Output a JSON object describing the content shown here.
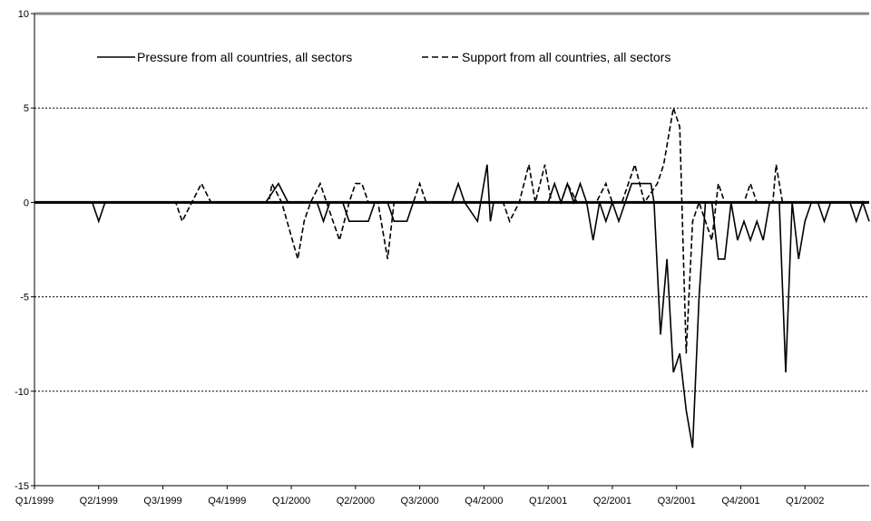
{
  "chart_data": {
    "type": "line",
    "title": "",
    "xlabel": "",
    "ylabel": "",
    "ylim": [
      -15,
      10
    ],
    "yticks": [
      -15,
      -10,
      -5,
      0,
      5,
      10
    ],
    "ytick_labels": [
      "-15",
      "-10",
      "-5",
      "0",
      "5",
      "10"
    ],
    "grid": "horizontal dashed at 5 and -5 and -10",
    "legend_position": "top-left",
    "categories": [
      "Q1/1999",
      "Q2/1999",
      "Q3/1999",
      "Q4/1999",
      "Q1/2000",
      "Q2/2000",
      "Q3/2000",
      "Q4/2000",
      "Q1/2001",
      "Q2/2001",
      "Q3/2001",
      "Q4/2001",
      "Q1/2002"
    ],
    "x_range": [
      0,
      13
    ],
    "series": [
      {
        "name": "Pressure from all countries, all sectors",
        "style": "solid",
        "color": "#000000",
        "points": [
          [
            0,
            0
          ],
          [
            0.9,
            0
          ],
          [
            1.0,
            -1
          ],
          [
            1.1,
            0
          ],
          [
            2.5,
            0
          ],
          [
            3.6,
            0
          ],
          [
            3.8,
            1
          ],
          [
            3.95,
            0
          ],
          [
            4.4,
            0
          ],
          [
            4.5,
            -1
          ],
          [
            4.6,
            0
          ],
          [
            4.8,
            0
          ],
          [
            4.9,
            -1
          ],
          [
            5.2,
            -1
          ],
          [
            5.3,
            0
          ],
          [
            5.5,
            0
          ],
          [
            5.6,
            -1
          ],
          [
            5.8,
            -1
          ],
          [
            5.9,
            0
          ],
          [
            6.5,
            0
          ],
          [
            6.6,
            1
          ],
          [
            6.7,
            0
          ],
          [
            6.9,
            -1
          ],
          [
            7.1,
            -1
          ],
          [
            7.2,
            0
          ],
          [
            6.95,
            0
          ],
          [
            7.05,
            2
          ],
          [
            7.15,
            0
          ],
          [
            8.0,
            0
          ],
          [
            8.1,
            1
          ],
          [
            8.2,
            0
          ],
          [
            8.3,
            1
          ],
          [
            8.4,
            0
          ],
          [
            8.5,
            1
          ],
          [
            8.6,
            0
          ],
          [
            8.7,
            -2
          ],
          [
            8.8,
            0
          ],
          [
            8.9,
            -1
          ],
          [
            9.0,
            0
          ],
          [
            9.1,
            -1
          ],
          [
            9.2,
            0
          ],
          [
            9.3,
            1
          ],
          [
            9.6,
            1
          ],
          [
            9.65,
            0
          ],
          [
            9.75,
            -7
          ],
          [
            9.85,
            -3
          ],
          [
            9.95,
            -9
          ],
          [
            10.05,
            -8
          ],
          [
            10.15,
            -11
          ],
          [
            10.25,
            -13
          ],
          [
            10.35,
            -5
          ],
          [
            10.45,
            0
          ],
          [
            10.55,
            0
          ],
          [
            10.65,
            -3
          ],
          [
            10.75,
            -3
          ],
          [
            10.85,
            0
          ],
          [
            10.95,
            -2
          ],
          [
            11.05,
            -1
          ],
          [
            11.15,
            -2
          ],
          [
            11.25,
            -1
          ],
          [
            11.35,
            -2
          ],
          [
            11.45,
            0
          ],
          [
            11.6,
            0
          ],
          [
            11.7,
            -9
          ],
          [
            11.8,
            0
          ],
          [
            11.9,
            -3
          ],
          [
            12.0,
            -1
          ],
          [
            12.1,
            0
          ],
          [
            12.2,
            0
          ],
          [
            12.3,
            -1
          ],
          [
            12.4,
            0
          ],
          [
            12.7,
            0
          ],
          [
            12.8,
            -1
          ],
          [
            12.9,
            0
          ],
          [
            13.0,
            -1
          ]
        ]
      },
      {
        "name": "Support from all countries, all sectors",
        "style": "dashed",
        "color": "#000000",
        "points": [
          [
            0,
            0
          ],
          [
            2.2,
            0
          ],
          [
            2.3,
            -1
          ],
          [
            2.45,
            0
          ],
          [
            2.6,
            1
          ],
          [
            2.75,
            0
          ],
          [
            3.0,
            0
          ],
          [
            3.5,
            0
          ],
          [
            3.55,
            0
          ],
          [
            3.65,
            0
          ],
          [
            3.7,
            1
          ],
          [
            3.85,
            0
          ],
          [
            4.1,
            -3
          ],
          [
            4.2,
            -1
          ],
          [
            4.3,
            0
          ],
          [
            4.45,
            1
          ],
          [
            4.55,
            0
          ],
          [
            4.75,
            -2
          ],
          [
            4.9,
            0
          ],
          [
            5.0,
            1
          ],
          [
            5.1,
            1
          ],
          [
            5.2,
            0
          ],
          [
            5.35,
            0
          ],
          [
            5.5,
            -3
          ],
          [
            5.6,
            0
          ],
          [
            5.9,
            0
          ],
          [
            6.0,
            1
          ],
          [
            6.1,
            0
          ],
          [
            7.3,
            0
          ],
          [
            7.4,
            -1
          ],
          [
            7.55,
            0
          ],
          [
            7.7,
            2
          ],
          [
            7.8,
            0
          ],
          [
            7.95,
            2
          ],
          [
            8.05,
            0
          ],
          [
            8.2,
            0
          ],
          [
            8.3,
            1
          ],
          [
            8.45,
            0
          ],
          [
            8.6,
            0
          ],
          [
            8.75,
            0
          ],
          [
            8.9,
            1
          ],
          [
            9.0,
            0
          ],
          [
            9.15,
            0
          ],
          [
            9.25,
            1
          ],
          [
            9.35,
            2
          ],
          [
            9.5,
            0
          ],
          [
            9.7,
            1
          ],
          [
            9.8,
            2
          ],
          [
            9.95,
            5
          ],
          [
            10.05,
            4
          ],
          [
            10.15,
            -8
          ],
          [
            10.25,
            -1
          ],
          [
            10.35,
            0
          ],
          [
            10.55,
            -2
          ],
          [
            10.65,
            1
          ],
          [
            10.75,
            0
          ],
          [
            10.9,
            0
          ],
          [
            11.05,
            0
          ],
          [
            11.15,
            1
          ],
          [
            11.25,
            0
          ],
          [
            11.5,
            0
          ],
          [
            11.55,
            2
          ],
          [
            11.65,
            0
          ],
          [
            13.0,
            0
          ]
        ]
      }
    ]
  }
}
